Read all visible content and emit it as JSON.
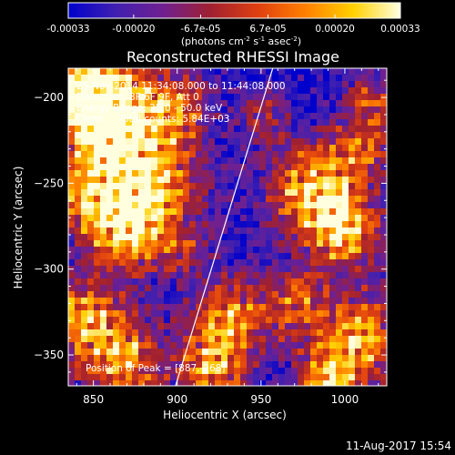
{
  "colorbar": {
    "ticks": [
      "-0.00033",
      "-0.00020",
      "-6.7e-05",
      "6.7e-05",
      "0.00020",
      "0.00033"
    ],
    "tick_values": [
      -0.00033,
      -0.0002,
      -6.7e-05,
      6.7e-05,
      0.0002,
      0.00033
    ],
    "range": [
      -0.00033,
      0.00033
    ],
    "unit_main": "(photons cm",
    "unit_sup1": "-2",
    "unit_mid": " s",
    "unit_sup2": "-1",
    "unit_mid2": " asec",
    "unit_sup3": "-2",
    "unit_end": ")"
  },
  "chart_data": {
    "type": "heatmap",
    "title": "Reconstructed RHESSI Image",
    "xlabel": "Heliocentric X (arcsec)",
    "ylabel": "Heliocentric Y (arcsec)",
    "xlim": [
      835,
      1025
    ],
    "ylim": [
      -368,
      -183
    ],
    "x_ticks": [
      850,
      900,
      950,
      1000
    ],
    "y_ticks": [
      -200,
      -250,
      -300,
      -350
    ],
    "x_tick_labels": [
      "850",
      "900",
      "950",
      "1000"
    ],
    "y_tick_labels": [
      "−200",
      "−250",
      "−300",
      "−350"
    ],
    "limb_line": [
      [
        899,
        -368
      ],
      [
        957,
        -183
      ]
    ],
    "info_lines": [
      "25-Nov-2014 11:34:08.000 to 11:44:08.000",
      "Detectors: 3F 6F 9F, Att 0",
      "Energy Range: 25.0 - 50.0 keV",
      "Clean     Total counts: 5.84E+03"
    ],
    "peak_label": "Position of Peak = [887,-268]",
    "peak_position": [
      887,
      -268
    ],
    "colormap_stops": [
      "#0000cc",
      "#4020b0",
      "#702090",
      "#a02030",
      "#e04010",
      "#ff8000",
      "#ffd000",
      "#ffffe0"
    ]
  },
  "footer": {
    "date": "11-Aug-2017 15:54"
  }
}
